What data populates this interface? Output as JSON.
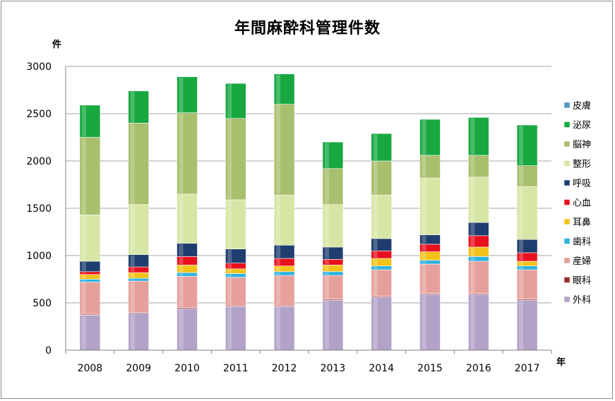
{
  "title": "年間麻酔科管理件数",
  "y_unit": "件",
  "x_unit": "年",
  "chart_data": {
    "type": "bar",
    "stacked": true,
    "title": "年間麻酔科管理件数",
    "xlabel": "年",
    "ylabel": "件",
    "ylim": [
      0,
      3000
    ],
    "yticks": [
      0,
      500,
      1000,
      1500,
      2000,
      2500,
      3000
    ],
    "grid": true,
    "legend_position": "right",
    "categories": [
      "2008",
      "2009",
      "2010",
      "2011",
      "2012",
      "2013",
      "2014",
      "2015",
      "2016",
      "2017"
    ],
    "series": [
      {
        "name": "外科",
        "color": "#b3a2c7",
        "values": [
          370,
          390,
          440,
          460,
          460,
          530,
          560,
          590,
          590,
          530
        ]
      },
      {
        "name": "眼科",
        "color": "#9b2d2a",
        "values": [
          10,
          10,
          10,
          10,
          10,
          10,
          10,
          10,
          10,
          10
        ]
      },
      {
        "name": "産婦",
        "color": "#e6a09c",
        "values": [
          340,
          330,
          330,
          300,
          320,
          250,
          280,
          310,
          340,
          310
        ]
      },
      {
        "name": "歯科",
        "color": "#2fb2e0",
        "values": [
          30,
          30,
          40,
          40,
          40,
          40,
          40,
          40,
          50,
          40
        ]
      },
      {
        "name": "耳鼻",
        "color": "#f2c21b",
        "values": [
          50,
          60,
          80,
          50,
          60,
          70,
          80,
          90,
          100,
          50
        ]
      },
      {
        "name": "心血",
        "color": "#e8101d",
        "values": [
          30,
          60,
          90,
          60,
          80,
          60,
          80,
          80,
          120,
          90
        ]
      },
      {
        "name": "呼吸",
        "color": "#1f3d6e",
        "values": [
          110,
          130,
          140,
          150,
          140,
          130,
          130,
          100,
          140,
          140
        ]
      },
      {
        "name": "整形",
        "color": "#d7e6a4",
        "values": [
          490,
          530,
          520,
          520,
          530,
          450,
          460,
          600,
          480,
          560
        ]
      },
      {
        "name": "脳神",
        "color": "#a8bf6d",
        "values": [
          820,
          860,
          860,
          860,
          960,
          380,
          360,
          240,
          230,
          220
        ]
      },
      {
        "name": "泌尿",
        "color": "#17a840",
        "values": [
          340,
          340,
          380,
          370,
          320,
          280,
          290,
          380,
          400,
          430
        ]
      },
      {
        "name": "皮膚",
        "color": "#4d97c2",
        "values": [
          0,
          0,
          0,
          0,
          0,
          0,
          0,
          0,
          0,
          0
        ]
      }
    ]
  }
}
